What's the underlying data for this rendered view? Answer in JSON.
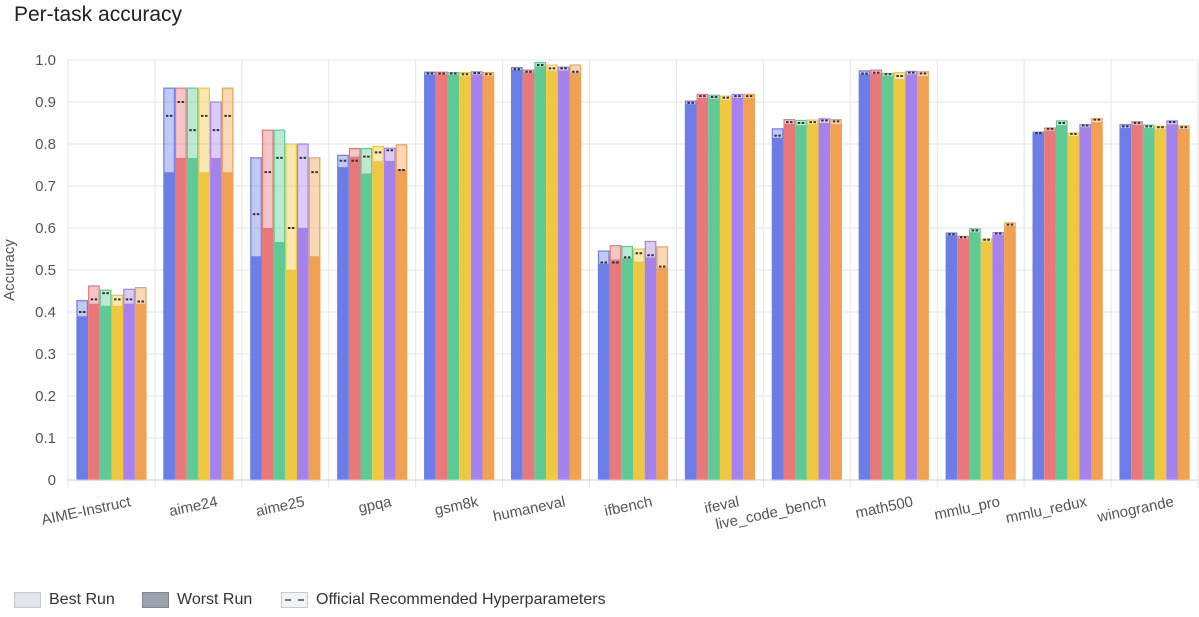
{
  "title": "Per-task accuracy",
  "legend": {
    "best": "Best Run",
    "worst": "Worst Run",
    "official": "Official Recommended Hyperparameters"
  },
  "chart_data": {
    "type": "bar",
    "title": "Per-task accuracy",
    "xlabel": "",
    "ylabel": "Accuracy",
    "ylim": [
      0,
      1.0
    ],
    "yticks": [
      "0",
      "0.1",
      "0.2",
      "0.3",
      "0.4",
      "0.5",
      "0.6",
      "0.7",
      "0.8",
      "0.9",
      "1.0"
    ],
    "grid": true,
    "legend_position": "bottom-left",
    "categories": [
      "AIME-Instruct",
      "aime24",
      "aime25",
      "gpqa",
      "gsm8k",
      "humaneval",
      "ifbench",
      "ifeval",
      "live_code_bench",
      "math500",
      "mmlu_pro",
      "mmlu_redux",
      "winogrande"
    ],
    "series_colors": [
      "#6b7ee8",
      "#e8787a",
      "#5fca94",
      "#f0c840",
      "#a682ec",
      "#f0a152"
    ],
    "series": [
      {
        "color": "#6b7ee8",
        "best": [
          0.427,
          0.933,
          0.767,
          0.773,
          0.971,
          0.982,
          0.545,
          0.902,
          0.836,
          0.974,
          0.588,
          0.828,
          0.846
        ],
        "worst": [
          0.39,
          0.733,
          0.533,
          0.745,
          0.965,
          0.976,
          0.515,
          0.895,
          0.815,
          0.966,
          0.583,
          0.825,
          0.838
        ],
        "official": [
          0.4,
          0.867,
          0.633,
          0.76,
          0.968,
          0.978,
          0.518,
          0.898,
          0.82,
          0.968,
          0.585,
          0.826,
          0.842
        ]
      },
      {
        "color": "#e8787a",
        "best": [
          0.462,
          0.933,
          0.833,
          0.789,
          0.971,
          0.976,
          0.558,
          0.918,
          0.858,
          0.976,
          0.58,
          0.838,
          0.853
        ],
        "worst": [
          0.42,
          0.767,
          0.6,
          0.77,
          0.966,
          0.97,
          0.525,
          0.91,
          0.848,
          0.968,
          0.575,
          0.832,
          0.846
        ],
        "official": [
          0.43,
          0.9,
          0.733,
          0.76,
          0.968,
          0.972,
          0.518,
          0.914,
          0.852,
          0.97,
          0.578,
          0.836,
          0.85
        ]
      },
      {
        "color": "#5fca94",
        "best": [
          0.452,
          0.933,
          0.833,
          0.789,
          0.97,
          0.994,
          0.556,
          0.916,
          0.856,
          0.968,
          0.598,
          0.855,
          0.845
        ],
        "worst": [
          0.415,
          0.767,
          0.567,
          0.73,
          0.965,
          0.985,
          0.528,
          0.908,
          0.845,
          0.962,
          0.59,
          0.845,
          0.838
        ],
        "official": [
          0.445,
          0.833,
          0.767,
          0.77,
          0.968,
          0.988,
          0.53,
          0.912,
          0.85,
          0.966,
          0.594,
          0.85,
          0.842
        ]
      },
      {
        "color": "#f0c840",
        "best": [
          0.44,
          0.933,
          0.8,
          0.794,
          0.97,
          0.988,
          0.55,
          0.914,
          0.857,
          0.97,
          0.574,
          0.826,
          0.842
        ],
        "worst": [
          0.415,
          0.733,
          0.5,
          0.76,
          0.962,
          0.975,
          0.52,
          0.905,
          0.848,
          0.955,
          0.568,
          0.82,
          0.836
        ],
        "official": [
          0.43,
          0.867,
          0.6,
          0.78,
          0.966,
          0.98,
          0.54,
          0.91,
          0.852,
          0.962,
          0.572,
          0.824,
          0.84
        ]
      },
      {
        "color": "#a682ec",
        "best": [
          0.454,
          0.9,
          0.8,
          0.79,
          0.972,
          0.983,
          0.568,
          0.918,
          0.86,
          0.973,
          0.589,
          0.846,
          0.855
        ],
        "worst": [
          0.42,
          0.767,
          0.6,
          0.76,
          0.966,
          0.975,
          0.53,
          0.91,
          0.85,
          0.966,
          0.584,
          0.84,
          0.847
        ],
        "official": [
          0.43,
          0.833,
          0.767,
          0.785,
          0.969,
          0.98,
          0.535,
          0.914,
          0.856,
          0.97,
          0.587,
          0.844,
          0.852
        ]
      },
      {
        "color": "#f0a152",
        "best": [
          0.458,
          0.933,
          0.767,
          0.798,
          0.97,
          0.988,
          0.555,
          0.918,
          0.858,
          0.972,
          0.612,
          0.86,
          0.843
        ],
        "worst": [
          0.42,
          0.733,
          0.533,
          0.74,
          0.962,
          0.97,
          0.505,
          0.91,
          0.848,
          0.962,
          0.605,
          0.852,
          0.836
        ],
        "official": [
          0.425,
          0.867,
          0.733,
          0.738,
          0.966,
          0.972,
          0.508,
          0.914,
          0.854,
          0.968,
          0.608,
          0.858,
          0.84
        ]
      }
    ]
  }
}
